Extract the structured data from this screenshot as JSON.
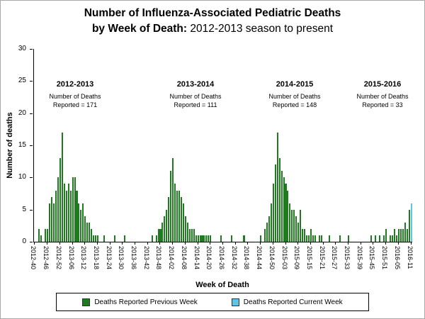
{
  "title": {
    "line1": "Number of Influenza-Associated Pediatric Deaths",
    "line2_bold": "by Week of Death: ",
    "line2_rest": "2012-2013 season to present"
  },
  "y_axis": {
    "label": "Number of deaths",
    "ticks": [
      0,
      5,
      10,
      15,
      20,
      25,
      30
    ]
  },
  "x_axis": {
    "label": "Week of Death"
  },
  "annotations": [
    {
      "name": "2012-2013",
      "note1": "Number of Deaths",
      "note2": "Reported = 171"
    },
    {
      "name": "2013-2014",
      "note1": "Number of Deaths",
      "note2": "Reported = 111"
    },
    {
      "name": "2014-2015",
      "note1": "Number of Deaths",
      "note2": "Reported = 148"
    },
    {
      "name": "2015-2016",
      "note1": "Number of Deaths",
      "note2": "Reported = 33"
    }
  ],
  "legend": {
    "previous": {
      "label": "Deaths Reported Previous Week",
      "color": "#1E7B1E"
    },
    "current": {
      "label": "Deaths Reported Current Week",
      "color": "#5BC6E8"
    }
  },
  "chart_data": {
    "type": "bar",
    "title": "Number of Influenza-Associated Pediatric Deaths by Week of Death: 2012-2013 season to present",
    "xlabel": "Week of Death",
    "ylabel": "Number of deaths",
    "ylim": [
      0,
      30
    ],
    "first_week": "2012-40",
    "last_week": "2016-11",
    "tick_interval": 6,
    "x_tick_labels": [
      "2012-40",
      "2012-46",
      "2012-52",
      "2013-06",
      "2013-12",
      "2013-18",
      "2013-24",
      "2013-30",
      "2013-36",
      "2013-42",
      "2013-48",
      "2014-02",
      "2014-08",
      "2014-14",
      "2014-20",
      "2014-26",
      "2014-32",
      "2014-38",
      "2014-44",
      "2014-50",
      "2015-03",
      "2015-09",
      "2015-15",
      "2015-21",
      "2015-27",
      "2015-33",
      "2015-39",
      "2015-45",
      "2015-51",
      "2016-05",
      "2016-11"
    ],
    "values": [
      0,
      0,
      2,
      1,
      0,
      2,
      2,
      6,
      7,
      6,
      8,
      10,
      13,
      17,
      9,
      8,
      9,
      8,
      10,
      10,
      8,
      6,
      5,
      6,
      4,
      3,
      3,
      2,
      1,
      1,
      1,
      0,
      0,
      1,
      0,
      0,
      0,
      0,
      1,
      0,
      0,
      0,
      0,
      1,
      0,
      0,
      0,
      0,
      0,
      0,
      0,
      0,
      0,
      0,
      0,
      0,
      1,
      0,
      1,
      2,
      2,
      3,
      4,
      5,
      7,
      11,
      13,
      9,
      8,
      8,
      7,
      6,
      4,
      3,
      2,
      2,
      2,
      1,
      1,
      1,
      1,
      1,
      1,
      1,
      1,
      0,
      0,
      0,
      0,
      1,
      0,
      0,
      0,
      0,
      1,
      0,
      0,
      0,
      0,
      0,
      1,
      0,
      0,
      0,
      0,
      0,
      0,
      0,
      1,
      0,
      2,
      3,
      4,
      6,
      9,
      12,
      17,
      13,
      11,
      10,
      9,
      8,
      6,
      5,
      5,
      4,
      3,
      5,
      2,
      2,
      1,
      1,
      2,
      1,
      1,
      0,
      1,
      1,
      0,
      0,
      0,
      1,
      0,
      0,
      0,
      0,
      1,
      0,
      0,
      0,
      1,
      0,
      0,
      0,
      0,
      0,
      0,
      0,
      0,
      0,
      0,
      1,
      0,
      1,
      0,
      1,
      0,
      1,
      2,
      0,
      1,
      1,
      2,
      1,
      2,
      2,
      2,
      3,
      2,
      5,
      6
    ],
    "current_week_index": 180,
    "season_totals": [
      {
        "season": "2012-2013",
        "deaths_reported": 171
      },
      {
        "season": "2013-2014",
        "deaths_reported": 111
      },
      {
        "season": "2014-2015",
        "deaths_reported": 148
      },
      {
        "season": "2015-2016",
        "deaths_reported": 33
      }
    ],
    "legend_entries": [
      "Deaths Reported Previous Week",
      "Deaths Reported Current Week"
    ],
    "grid": false,
    "legend_position": "bottom"
  }
}
